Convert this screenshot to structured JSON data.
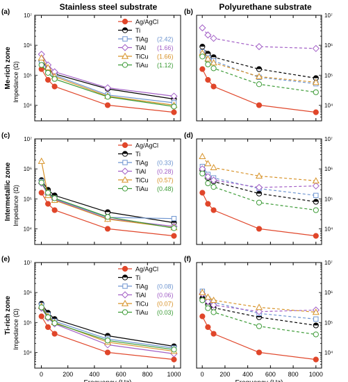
{
  "figure": {
    "col_titles": [
      "Stainless steel substrate",
      "Polyurethane substrate"
    ],
    "row_labels": [
      "Me-rich zone",
      "Intermetallic zone",
      "Ti-rich zone"
    ],
    "panel_letters": [
      "(a)",
      "(b)",
      "(c)",
      "(d)",
      "(e)",
      "(f)"
    ],
    "xlabel": "Frequency (Hz)",
    "ylabel": "Impedance (Ω)",
    "xticks": [
      "0",
      "200",
      "400",
      "600",
      "800",
      "1000"
    ],
    "yticks": [
      "10⁴",
      "10⁵",
      "10⁶",
      "10⁷"
    ]
  },
  "colors": {
    "Ag/AgCl": "#e0462a",
    "Ti": "#000000",
    "TiAg": "#6e95d0",
    "TiAl": "#a25fc6",
    "TiCu": "#d79227",
    "TiAu": "#3c9b36"
  },
  "chart_data": [
    {
      "type": "line",
      "panel": "(a)",
      "row": "Me-rich zone",
      "substrate": "Stainless steel substrate",
      "xlabel": "Frequency (Hz)",
      "ylabel": "Impedance (Ω)",
      "yscale": "log",
      "xlim": [
        -50,
        1050
      ],
      "ylim": [
        3000,
        10000000
      ],
      "legend": "top-right",
      "series": [
        {
          "name": "Ag/AgCl",
          "legend_value": "",
          "marker": "circle-filled",
          "line": "solid",
          "x": [
            1,
            50,
            100,
            500,
            1000
          ],
          "y": [
            160000,
            70000,
            42000,
            10000,
            5800
          ]
        },
        {
          "name": "Ti",
          "legend_value": "",
          "marker": "circle-half",
          "line": "solid",
          "x": [
            1,
            50,
            100,
            500,
            1000
          ],
          "y": [
            300000,
            170000,
            110000,
            35000,
            16000
          ]
        },
        {
          "name": "TiAg",
          "legend_value": "(2.42)",
          "marker": "square",
          "line": "solid",
          "x": [
            1,
            50,
            100,
            500,
            1000
          ],
          "y": [
            280000,
            150000,
            100000,
            22000,
            12000
          ]
        },
        {
          "name": "TiAl",
          "legend_value": "(1.66)",
          "marker": "diamond",
          "line": "solid",
          "x": [
            1,
            50,
            100,
            500,
            1000
          ],
          "y": [
            500000,
            220000,
            130000,
            38000,
            20000
          ]
        },
        {
          "name": "TiCu",
          "legend_value": "(1.66)",
          "marker": "triangle",
          "line": "solid",
          "x": [
            1,
            50,
            100,
            500,
            1000
          ],
          "y": [
            380000,
            180000,
            90000,
            20000,
            10000
          ]
        },
        {
          "name": "TiAu",
          "legend_value": "(1.12)",
          "marker": "circle",
          "line": "solid",
          "x": [
            1,
            50,
            100,
            500,
            1000
          ],
          "y": [
            220000,
            120000,
            75000,
            19000,
            9000
          ]
        }
      ]
    },
    {
      "type": "line",
      "panel": "(b)",
      "row": "Me-rich zone",
      "substrate": "Polyurethane substrate",
      "xlabel": "Frequency (Hz)",
      "ylabel": "Impedance (Ω)",
      "yscale": "log",
      "xlim": [
        -50,
        1050
      ],
      "ylim": [
        3000,
        10000000
      ],
      "series": [
        {
          "name": "Ag/AgCl",
          "marker": "circle-filled",
          "line": "solid",
          "x": [
            1,
            50,
            100,
            500,
            1000
          ],
          "y": [
            160000,
            70000,
            42000,
            10000,
            5800
          ]
        },
        {
          "name": "Ti",
          "marker": "circle-half",
          "line": "dashed",
          "x": [
            1,
            50,
            100,
            500,
            1000
          ],
          "y": [
            900000,
            520000,
            400000,
            160000,
            80000
          ]
        },
        {
          "name": "TiAg",
          "marker": "square",
          "line": "dashed",
          "x": [
            1,
            50,
            100,
            500,
            1000
          ],
          "y": [
            600000,
            380000,
            300000,
            85000,
            52000
          ]
        },
        {
          "name": "TiAl",
          "marker": "diamond",
          "line": "dashed",
          "x": [
            1,
            50,
            100,
            500,
            1000
          ],
          "y": [
            3800000,
            2200000,
            1700000,
            900000,
            780000
          ]
        },
        {
          "name": "TiCu",
          "marker": "triangle",
          "line": "dashed",
          "x": [
            1,
            50,
            100,
            500,
            1000
          ],
          "y": [
            550000,
            350000,
            260000,
            90000,
            58000
          ]
        },
        {
          "name": "TiAu",
          "marker": "circle",
          "line": "dashed",
          "x": [
            1,
            50,
            100,
            500,
            1000
          ],
          "y": [
            420000,
            230000,
            170000,
            50000,
            27000
          ]
        }
      ]
    },
    {
      "type": "line",
      "panel": "(c)",
      "row": "Intermetallic zone",
      "substrate": "Stainless steel substrate",
      "xlabel": "Frequency (Hz)",
      "ylabel": "Impedance (Ω)",
      "yscale": "log",
      "xlim": [
        -50,
        1050
      ],
      "ylim": [
        3000,
        10000000
      ],
      "legend": "top-right",
      "series": [
        {
          "name": "Ag/AgCl",
          "legend_value": "",
          "marker": "circle-filled",
          "line": "solid",
          "x": [
            1,
            50,
            100,
            500,
            1000
          ],
          "y": [
            160000,
            68000,
            42000,
            10000,
            5800
          ]
        },
        {
          "name": "Ti",
          "legend_value": "",
          "marker": "circle-half",
          "line": "solid",
          "x": [
            1,
            50,
            100,
            500,
            1000
          ],
          "y": [
            420000,
            200000,
            130000,
            36000,
            16000
          ]
        },
        {
          "name": "TiAg",
          "legend_value": "(0.33)",
          "marker": "square",
          "line": "solid",
          "x": [
            1,
            50,
            100,
            500,
            1000
          ],
          "y": [
            380000,
            150000,
            100000,
            24000,
            22000
          ]
        },
        {
          "name": "TiAl",
          "legend_value": "(0.28)",
          "marker": "diamond",
          "line": "solid",
          "x": [
            1,
            50,
            100,
            500,
            1000
          ],
          "y": [
            330000,
            140000,
            95000,
            22000,
            12000
          ]
        },
        {
          "name": "TiCu",
          "legend_value": "(0.57)",
          "marker": "triangle",
          "line": "solid",
          "x": [
            1,
            50,
            100,
            500,
            1000
          ],
          "y": [
            1800000,
            130000,
            90000,
            21000,
            11000
          ]
        },
        {
          "name": "TiAu",
          "legend_value": "(0.48)",
          "marker": "circle",
          "line": "solid",
          "x": [
            1,
            50,
            100,
            500,
            1000
          ],
          "y": [
            350000,
            160000,
            105000,
            25000,
            10500
          ]
        }
      ]
    },
    {
      "type": "line",
      "panel": "(d)",
      "row": "Intermetallic zone",
      "substrate": "Polyurethane substrate",
      "xlabel": "Frequency (Hz)",
      "ylabel": "Impedance (Ω)",
      "yscale": "log",
      "xlim": [
        -50,
        1050
      ],
      "ylim": [
        3000,
        10000000
      ],
      "series": [
        {
          "name": "Ag/AgCl",
          "marker": "circle-filled",
          "line": "solid",
          "x": [
            1,
            50,
            100,
            500,
            1000
          ],
          "y": [
            160000,
            68000,
            42000,
            10000,
            5800
          ]
        },
        {
          "name": "Ti",
          "marker": "circle-half",
          "line": "dashed",
          "x": [
            1,
            50,
            100,
            500,
            1000
          ],
          "y": [
            900000,
            500000,
            380000,
            150000,
            80000
          ]
        },
        {
          "name": "TiAg",
          "marker": "square",
          "line": "dashed",
          "x": [
            1,
            50,
            100,
            500,
            1000
          ],
          "y": [
            1200000,
            650000,
            500000,
            220000,
            130000
          ]
        },
        {
          "name": "TiAl",
          "marker": "diamond",
          "line": "dashed",
          "x": [
            1,
            50,
            100,
            500,
            1000
          ],
          "y": [
            1000000,
            550000,
            420000,
            240000,
            270000
          ]
        },
        {
          "name": "TiCu",
          "marker": "triangle",
          "line": "dashed",
          "x": [
            1,
            50,
            100,
            500,
            1000
          ],
          "y": [
            2600000,
            1500000,
            1100000,
            580000,
            400000
          ]
        },
        {
          "name": "TiAu",
          "marker": "circle",
          "line": "dashed",
          "x": [
            1,
            50,
            100,
            500,
            1000
          ],
          "y": [
            700000,
            330000,
            250000,
            75000,
            42000
          ]
        }
      ]
    },
    {
      "type": "line",
      "panel": "(e)",
      "row": "Ti-rich zone",
      "substrate": "Stainless steel substrate",
      "xlabel": "Frequency (Hz)",
      "ylabel": "Impedance (Ω)",
      "yscale": "log",
      "xlim": [
        -50,
        1050
      ],
      "ylim": [
        3000,
        10000000
      ],
      "legend": "top-right",
      "series": [
        {
          "name": "Ag/AgCl",
          "legend_value": "",
          "marker": "circle-filled",
          "line": "solid",
          "x": [
            1,
            50,
            100,
            500,
            1000
          ],
          "y": [
            160000,
            70000,
            42000,
            10000,
            5800
          ]
        },
        {
          "name": "Ti",
          "legend_value": "",
          "marker": "circle-half",
          "line": "solid",
          "x": [
            1,
            50,
            100,
            500,
            1000
          ],
          "y": [
            420000,
            210000,
            130000,
            36000,
            16000
          ]
        },
        {
          "name": "TiAg",
          "legend_value": "(0.08)",
          "marker": "square",
          "line": "solid",
          "x": [
            1,
            50,
            100,
            500,
            1000
          ],
          "y": [
            380000,
            180000,
            110000,
            28000,
            14000
          ]
        },
        {
          "name": "TiAl",
          "legend_value": "(0.06)",
          "marker": "diamond",
          "line": "solid",
          "x": [
            1,
            50,
            100,
            500,
            1000
          ],
          "y": [
            300000,
            140000,
            90000,
            18000,
            9000
          ]
        },
        {
          "name": "TiCu",
          "legend_value": "(0.07)",
          "marker": "triangle",
          "line": "solid",
          "x": [
            1,
            50,
            100,
            500,
            1000
          ],
          "y": [
            350000,
            160000,
            100000,
            22000,
            11000
          ]
        },
        {
          "name": "TiAu",
          "legend_value": "(0.03)",
          "marker": "circle",
          "line": "solid",
          "x": [
            1,
            50,
            100,
            500,
            1000
          ],
          "y": [
            320000,
            150000,
            95000,
            25000,
            12500
          ]
        }
      ]
    },
    {
      "type": "line",
      "panel": "(f)",
      "row": "Ti-rich zone",
      "substrate": "Polyurethane substrate",
      "xlabel": "Frequency (Hz)",
      "ylabel": "Impedance (Ω)",
      "yscale": "log",
      "xlim": [
        -50,
        1050
      ],
      "ylim": [
        3000,
        10000000
      ],
      "series": [
        {
          "name": "Ag/AgCl",
          "marker": "circle-filled",
          "line": "solid",
          "x": [
            1,
            50,
            100,
            500,
            1000
          ],
          "y": [
            160000,
            70000,
            42000,
            10000,
            5800
          ]
        },
        {
          "name": "Ti",
          "marker": "circle-half",
          "line": "dashed",
          "x": [
            1,
            50,
            100,
            500,
            1000
          ],
          "y": [
            650000,
            400000,
            310000,
            150000,
            80000
          ]
        },
        {
          "name": "TiAg",
          "marker": "square",
          "line": "dashed",
          "x": [
            1,
            50,
            100,
            500,
            1000
          ],
          "y": [
            1100000,
            600000,
            470000,
            200000,
            130000
          ]
        },
        {
          "name": "TiAl",
          "marker": "diamond",
          "line": "dashed",
          "x": [
            1,
            50,
            100,
            500,
            1000
          ],
          "y": [
            900000,
            500000,
            380000,
            230000,
            260000
          ]
        },
        {
          "name": "TiCu",
          "marker": "triangle",
          "line": "dashed",
          "x": [
            1,
            50,
            100,
            500,
            1000
          ],
          "y": [
            1000000,
            700000,
            550000,
            320000,
            220000
          ]
        },
        {
          "name": "TiAu",
          "marker": "circle",
          "line": "dashed",
          "x": [
            1,
            50,
            100,
            500,
            1000
          ],
          "y": [
            550000,
            300000,
            220000,
            75000,
            40000
          ]
        }
      ]
    }
  ]
}
